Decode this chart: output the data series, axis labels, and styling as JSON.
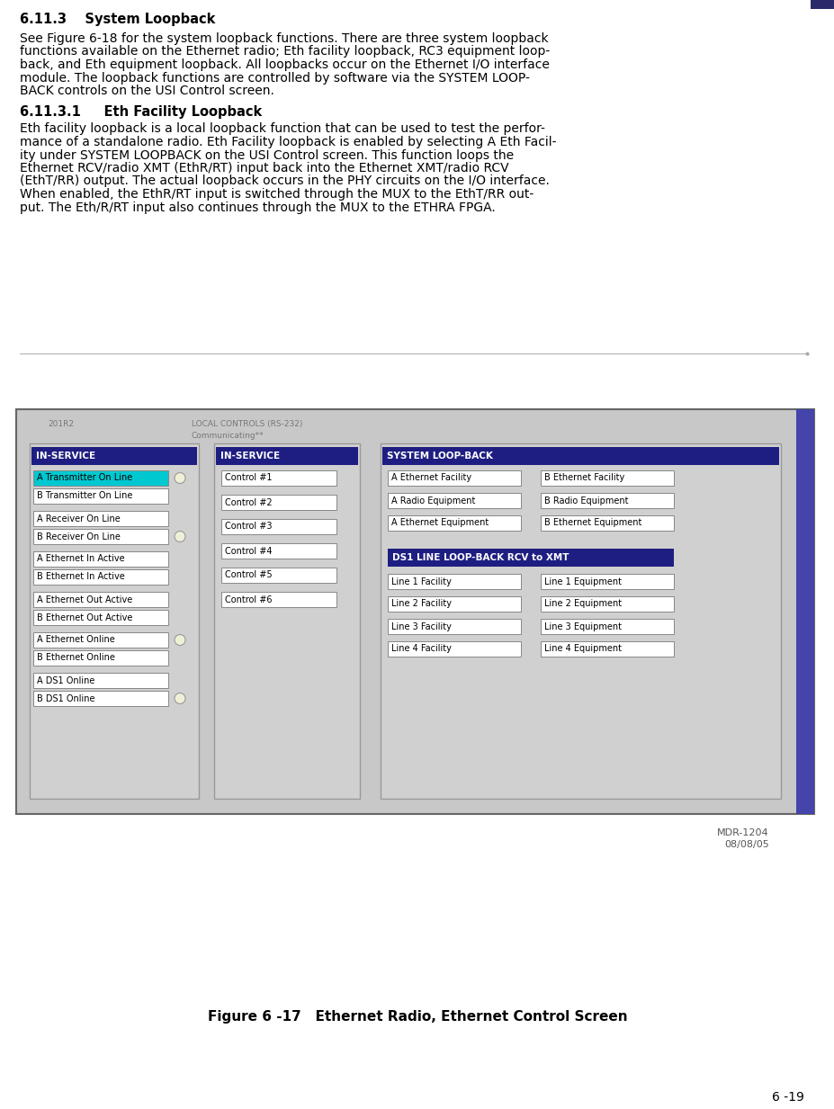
{
  "page_bg": "#ffffff",
  "sidebar_color": "#2a2a6a",
  "heading1_text": "6.11.3    System Loopback",
  "heading1_size": 10.5,
  "body1_lines": [
    "See Figure 6-18 for the system loopback functions. There are three system loopback",
    "functions available on the Ethernet radio; Eth facility loopback, RC3 equipment loop-",
    "back, and Eth equipment loopback. All loopbacks occur on the Ethernet I/O interface",
    "module. The loopback functions are controlled by software via the SYSTEM LOOP-",
    "BACK controls on the USI Control screen."
  ],
  "body_size": 10.0,
  "heading2_text": "6.11.3.1     Eth Facility Loopback",
  "heading2_size": 10.5,
  "body2_lines": [
    "Eth facility loopback is a local loopback function that can be used to test the perfor-",
    "mance of a standalone radio. Eth Facility loopback is enabled by selecting A Eth Facil-",
    "ity under SYSTEM LOOPBACK on the USI Control screen. This function loops the",
    "Ethernet RCV/radio XMT (EthR/RT) input back into the Ethernet XMT/radio RCV",
    "(EthT/RR) output. The actual loopback occurs in the PHY circuits on the I/O interface.",
    "When enabled, the EthR/RT input is switched through the MUX to the EthT/RR out-",
    "put. The Eth/R/RT input also continues through the MUX to the ETHRA FPGA."
  ],
  "figure_caption": "Figure 6 -17   Ethernet Radio, Ethernet Control Screen",
  "figure_caption_size": 11,
  "page_number": "6 -19",
  "page_number_size": 10,
  "mdr_label": "MDR-1204",
  "mdr_date": "08/08/05",
  "mdr_size": 8,
  "screen_bg": "#c8c8c8",
  "header_bg": "#1e1e82",
  "header_text_color": "#ffffff",
  "header_font_size": 7.5,
  "button_bg": "#ffffff",
  "button_border": "#888888",
  "button_text_color": "#000000",
  "button_font_size": 7.0,
  "highlight_button_bg": "#00c8d0",
  "panel1_header": "IN-SERVICE",
  "panel1_items": [
    "A Transmitter On Line",
    "B Transmitter On Line",
    "A Receiver On Line",
    "B Receiver On Line",
    "A Ethernet In Active",
    "B Ethernet In Active",
    "A Ethernet Out Active",
    "B Ethernet Out Active",
    "A Ethernet Online",
    "B Ethernet Online",
    "A DS1 Online",
    "B DS1 Online"
  ],
  "panel1_circles": [
    0,
    3,
    8,
    11
  ],
  "panel2_header": "IN-SERVICE",
  "panel2_items": [
    "Control #1",
    "Control #2",
    "Control #3",
    "Control #4",
    "Control #5",
    "Control #6"
  ],
  "panel3_header": "SYSTEM LOOP-BACK",
  "panel3_left": [
    "A Ethernet Facility",
    "A Radio Equipment",
    "A Ethernet Equipment"
  ],
  "panel3_right": [
    "B Ethernet Facility",
    "B Radio Equipment",
    "B Ethernet Equipment"
  ],
  "panel3_sub_header": "DS1 LINE LOOP-BACK RCV to XMT",
  "panel3_left2": [
    "Line 1 Facility",
    "Line 2 Facility",
    "Line 3 Facility",
    "Line 4 Facility"
  ],
  "panel3_right2": [
    "Line 1 Equipment",
    "Line 2 Equipment",
    "Line 3 Equipment",
    "Line 4 Equipment"
  ],
  "top_label": "201R2",
  "top_label2": "LOCAL CONTROLS (RS-232)",
  "top_label3": "Communicating**"
}
